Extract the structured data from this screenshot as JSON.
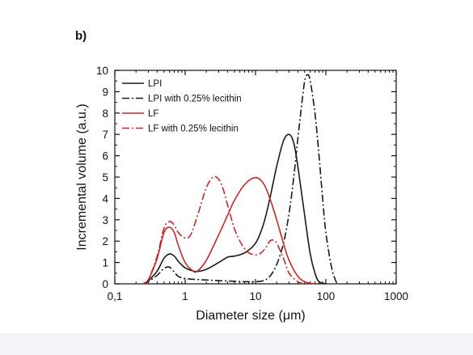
{
  "panel_label": "b)",
  "chart_data": {
    "type": "line",
    "xlabel": "Diameter size (μm)",
    "ylabel": "Incremental volume (a.u.)",
    "xscale": "log",
    "xlim": [
      0.1,
      1000
    ],
    "ylim": [
      0,
      10
    ],
    "x_ticks": [
      0.1,
      1,
      10,
      100,
      1000
    ],
    "x_tick_labels": [
      "0,1",
      "1",
      "10",
      "100",
      "1000"
    ],
    "y_ticks": [
      0,
      1,
      2,
      3,
      4,
      5,
      6,
      7,
      8,
      9,
      10
    ],
    "y_tick_labels": [
      "0",
      "1",
      "2",
      "3",
      "4",
      "5",
      "6",
      "7",
      "8",
      "9",
      "10"
    ],
    "grid": false,
    "legend_position": "top-left",
    "series": [
      {
        "name": "LPI",
        "color": "#1a1a1a",
        "dash": "solid",
        "x": [
          0.25,
          0.3,
          0.4,
          0.5,
          0.6,
          0.7,
          0.8,
          1.0,
          1.3,
          1.5,
          2.0,
          3.0,
          4.0,
          5.0,
          7.0,
          10,
          13,
          16,
          20,
          25,
          30,
          35,
          40,
          50,
          60,
          70,
          80,
          100
        ],
        "y": [
          0.0,
          0.15,
          0.6,
          1.2,
          1.4,
          1.3,
          1.05,
          0.75,
          0.6,
          0.58,
          0.68,
          1.0,
          1.25,
          1.3,
          1.45,
          1.9,
          2.8,
          4.0,
          5.5,
          6.7,
          7.0,
          6.6,
          5.5,
          3.2,
          1.4,
          0.5,
          0.1,
          0.0
        ]
      },
      {
        "name": "LPI with 0.25% lecithin",
        "color": "#1a1a1a",
        "dash": "dashdot",
        "x": [
          0.25,
          0.3,
          0.4,
          0.5,
          0.6,
          0.7,
          0.8,
          1.0,
          1.5,
          2.0,
          3.0,
          5.0,
          7.0,
          10,
          13,
          16,
          20,
          25,
          30,
          35,
          40,
          45,
          50,
          55,
          60,
          70,
          80,
          90,
          100,
          120,
          140,
          150
        ],
        "y": [
          0.0,
          0.1,
          0.4,
          0.72,
          0.78,
          0.55,
          0.35,
          0.25,
          0.2,
          0.18,
          0.15,
          0.12,
          0.1,
          0.1,
          0.15,
          0.35,
          0.9,
          1.9,
          3.3,
          5.0,
          6.8,
          8.3,
          9.5,
          9.8,
          9.5,
          8.0,
          6.0,
          4.0,
          2.4,
          0.8,
          0.1,
          0.0
        ]
      },
      {
        "name": "LF",
        "color": "#c62828",
        "dash": "solid",
        "x": [
          0.25,
          0.3,
          0.4,
          0.5,
          0.6,
          0.7,
          0.8,
          1.0,
          1.3,
          1.5,
          2.0,
          3.0,
          4.0,
          5.0,
          7.0,
          10,
          13,
          16,
          20,
          25,
          30,
          40,
          50,
          60,
          70
        ],
        "y": [
          0.0,
          0.2,
          1.2,
          2.4,
          2.65,
          2.4,
          1.8,
          1.0,
          0.6,
          0.6,
          1.1,
          2.3,
          3.2,
          3.9,
          4.65,
          4.98,
          4.7,
          4.0,
          3.0,
          1.9,
          1.1,
          0.35,
          0.1,
          0.03,
          0.0
        ]
      },
      {
        "name": "LF with 0.25% lecithin",
        "color": "#c62828",
        "dash": "dashdot",
        "x": [
          0.25,
          0.3,
          0.4,
          0.5,
          0.6,
          0.7,
          0.8,
          1.0,
          1.2,
          1.5,
          2.0,
          2.5,
          3.0,
          3.5,
          4.0,
          5.0,
          6.0,
          7.0,
          8.0,
          10,
          12,
          14,
          16,
          18,
          20,
          25,
          30,
          40,
          50
        ],
        "y": [
          0.0,
          0.2,
          1.3,
          2.6,
          2.92,
          2.75,
          2.4,
          2.15,
          2.3,
          3.2,
          4.5,
          5.0,
          4.9,
          4.4,
          3.7,
          2.6,
          2.0,
          1.65,
          1.45,
          1.35,
          1.45,
          1.7,
          2.0,
          2.05,
          1.9,
          1.2,
          0.5,
          0.1,
          0.0
        ]
      }
    ]
  }
}
